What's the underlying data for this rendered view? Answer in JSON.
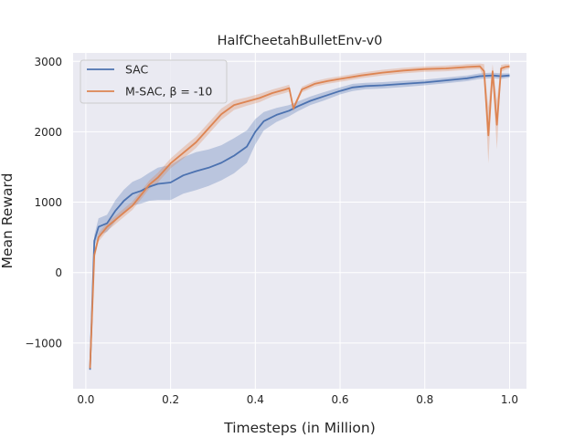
{
  "chart_data": {
    "type": "line",
    "title": "HalfCheetahBulletEnv-v0",
    "xlabel": "Timesteps (in Million)",
    "ylabel": "Mean Reward",
    "xlim": [
      -0.03,
      1.04
    ],
    "ylim": [
      -1650,
      3120
    ],
    "xticks": [
      0.0,
      0.2,
      0.4,
      0.6,
      0.8,
      1.0
    ],
    "xtick_labels": [
      "0.0",
      "0.2",
      "0.4",
      "0.6",
      "0.8",
      "1.0"
    ],
    "yticks": [
      -1000,
      0,
      1000,
      2000,
      3000
    ],
    "ytick_labels": [
      "−1000",
      "0",
      "1000",
      "2000",
      "3000"
    ],
    "grid": true,
    "legend_position": "top-left",
    "series": [
      {
        "name": "SAC",
        "color": "#4c72b0",
        "x": [
          0.01,
          0.02,
          0.03,
          0.05,
          0.07,
          0.09,
          0.11,
          0.13,
          0.15,
          0.17,
          0.2,
          0.23,
          0.26,
          0.29,
          0.32,
          0.35,
          0.38,
          0.4,
          0.42,
          0.45,
          0.48,
          0.5,
          0.53,
          0.56,
          0.6,
          0.63,
          0.66,
          0.7,
          0.75,
          0.8,
          0.85,
          0.9,
          0.93,
          0.96,
          0.98,
          1.0
        ],
        "y": [
          -1380,
          450,
          650,
          700,
          880,
          1020,
          1120,
          1160,
          1220,
          1260,
          1280,
          1380,
          1440,
          1490,
          1560,
          1660,
          1790,
          2000,
          2150,
          2240,
          2300,
          2360,
          2440,
          2500,
          2580,
          2630,
          2650,
          2660,
          2680,
          2700,
          2730,
          2760,
          2790,
          2800,
          2790,
          2800
        ],
        "band": [
          0,
          80,
          120,
          120,
          150,
          160,
          170,
          180,
          200,
          230,
          250,
          260,
          270,
          260,
          250,
          250,
          230,
          180,
          130,
          100,
          80,
          70,
          60,
          60,
          50,
          50,
          45,
          45,
          45,
          40,
          40,
          40,
          40,
          40,
          40,
          30
        ]
      },
      {
        "name": "M-SAC, β = -10",
        "color": "#dd8452",
        "x": [
          0.01,
          0.02,
          0.03,
          0.05,
          0.07,
          0.09,
          0.11,
          0.13,
          0.15,
          0.17,
          0.2,
          0.23,
          0.26,
          0.29,
          0.32,
          0.35,
          0.38,
          0.41,
          0.44,
          0.47,
          0.48,
          0.49,
          0.51,
          0.54,
          0.57,
          0.6,
          0.65,
          0.7,
          0.75,
          0.8,
          0.85,
          0.9,
          0.93,
          0.94,
          0.95,
          0.96,
          0.97,
          0.98,
          0.99,
          1.0
        ],
        "y": [
          -1360,
          250,
          500,
          650,
          750,
          850,
          950,
          1100,
          1250,
          1350,
          1550,
          1700,
          1850,
          2050,
          2250,
          2380,
          2430,
          2480,
          2550,
          2600,
          2620,
          2330,
          2600,
          2680,
          2720,
          2750,
          2800,
          2840,
          2870,
          2890,
          2900,
          2920,
          2930,
          2860,
          1950,
          2860,
          2100,
          2900,
          2920,
          2930
        ],
        "band": [
          0,
          60,
          60,
          60,
          60,
          60,
          60,
          60,
          60,
          70,
          70,
          80,
          80,
          80,
          80,
          70,
          60,
          60,
          50,
          50,
          50,
          40,
          40,
          40,
          40,
          40,
          40,
          40,
          40,
          40,
          40,
          40,
          40,
          100,
          400,
          100,
          350,
          50,
          40,
          30
        ]
      }
    ]
  }
}
